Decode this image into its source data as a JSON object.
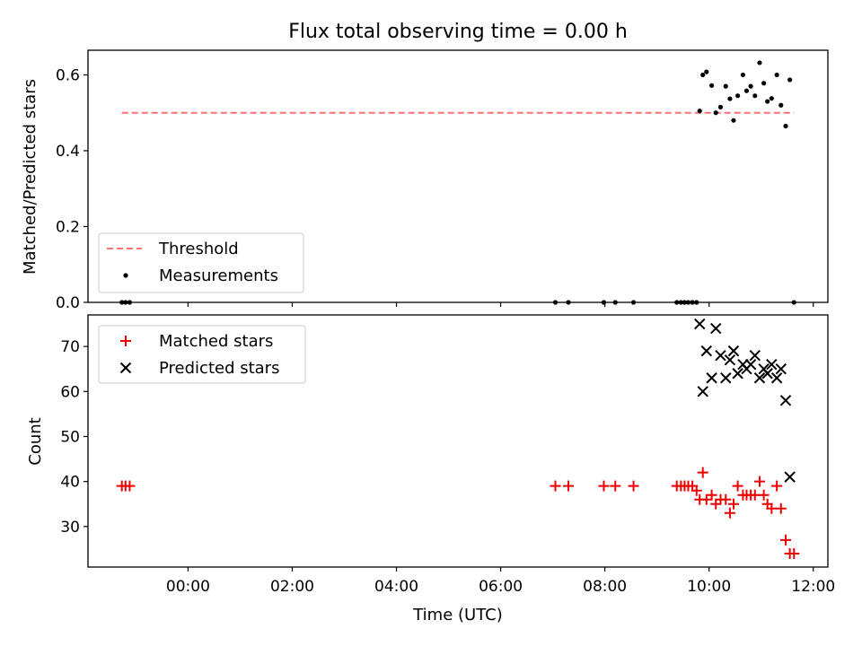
{
  "figure": {
    "title": "Flux total observing time = 0.00 h"
  },
  "chart_data": [
    {
      "type": "scatter",
      "title": "Flux total observing time = 0.00 h",
      "xlabel": "",
      "ylabel": "Matched/Predicted stars",
      "xlim": [
        -1.92,
        12.28
      ],
      "ylim": [
        0.0,
        0.665
      ],
      "yticks": [
        "0.0",
        "0.2",
        "0.4",
        "0.6"
      ],
      "yticks_values": [
        0.0,
        0.2,
        0.4,
        0.6
      ],
      "xticks_values": [
        0,
        2,
        4,
        6,
        8,
        10,
        12
      ],
      "legend_location": "lower-left",
      "series": [
        {
          "name": "Threshold",
          "kind": "dashed-line",
          "color": "#ff7070",
          "x": [
            -1.27,
            11.63
          ],
          "y": [
            0.5,
            0.5
          ]
        },
        {
          "name": "Measurements",
          "kind": "dots",
          "color": "#000000",
          "x": [
            -1.27,
            -1.2,
            -1.12,
            7.05,
            7.3,
            7.98,
            8.2,
            8.55,
            9.38,
            9.46,
            9.53,
            9.6,
            9.68,
            9.76,
            9.82,
            9.88,
            9.95,
            10.05,
            10.13,
            10.22,
            10.32,
            10.4,
            10.47,
            10.55,
            10.65,
            10.72,
            10.8,
            10.88,
            10.97,
            11.05,
            11.12,
            11.2,
            11.3,
            11.38,
            11.47,
            11.55,
            11.63
          ],
          "y": [
            0.0,
            0.0,
            0.0,
            0.0,
            0.0,
            0.0,
            0.0,
            0.0,
            0.0,
            0.0,
            0.0,
            0.0,
            0.0,
            0.0,
            0.505,
            0.6,
            0.608,
            0.572,
            0.5,
            0.515,
            0.57,
            0.537,
            0.48,
            0.545,
            0.6,
            0.558,
            0.57,
            0.545,
            0.632,
            0.578,
            0.53,
            0.538,
            0.6,
            0.52,
            0.465,
            0.587,
            0.0
          ]
        }
      ]
    },
    {
      "type": "scatter",
      "title": "",
      "xlabel": "Time (UTC)",
      "ylabel": "Count",
      "xlim": [
        -1.92,
        12.28
      ],
      "ylim": [
        21.0,
        77.0
      ],
      "yticks": [
        "30",
        "40",
        "50",
        "60",
        "70"
      ],
      "yticks_values": [
        30,
        40,
        50,
        60,
        70
      ],
      "xticks": [
        "00:00",
        "02:00",
        "04:00",
        "06:00",
        "08:00",
        "10:00",
        "12:00"
      ],
      "xticks_values": [
        0,
        2,
        4,
        6,
        8,
        10,
        12
      ],
      "legend_location": "top-left",
      "series": [
        {
          "name": "Matched stars",
          "kind": "plus",
          "color": "#ee0000",
          "x": [
            -1.27,
            -1.2,
            -1.12,
            7.05,
            7.3,
            7.98,
            8.2,
            8.55,
            9.38,
            9.46,
            9.53,
            9.6,
            9.68,
            9.76,
            9.82,
            9.88,
            9.95,
            10.05,
            10.13,
            10.22,
            10.32,
            10.4,
            10.47,
            10.55,
            10.65,
            10.72,
            10.8,
            10.88,
            10.97,
            11.05,
            11.12,
            11.2,
            11.3,
            11.38,
            11.47,
            11.55,
            11.63
          ],
          "y": [
            39,
            39,
            39,
            39,
            39,
            39,
            39,
            39,
            39,
            39,
            39,
            39,
            39,
            38,
            36,
            42,
            36,
            37,
            35,
            36,
            36,
            33,
            35,
            39,
            37,
            37,
            37,
            37,
            40,
            37,
            35,
            34,
            39,
            34,
            27,
            24,
            24
          ]
        },
        {
          "name": "Predicted stars",
          "kind": "cross",
          "color": "#000000",
          "x": [
            9.82,
            9.88,
            9.95,
            10.05,
            10.13,
            10.22,
            10.32,
            10.4,
            10.47,
            10.55,
            10.65,
            10.72,
            10.8,
            10.88,
            10.97,
            11.05,
            11.12,
            11.2,
            11.3,
            11.38,
            11.47,
            11.55
          ],
          "y": [
            75,
            60,
            69,
            63,
            74,
            68,
            63,
            67,
            69,
            64,
            66,
            65,
            66,
            68,
            63,
            65,
            64,
            66,
            63,
            65,
            58,
            41
          ]
        }
      ]
    }
  ]
}
